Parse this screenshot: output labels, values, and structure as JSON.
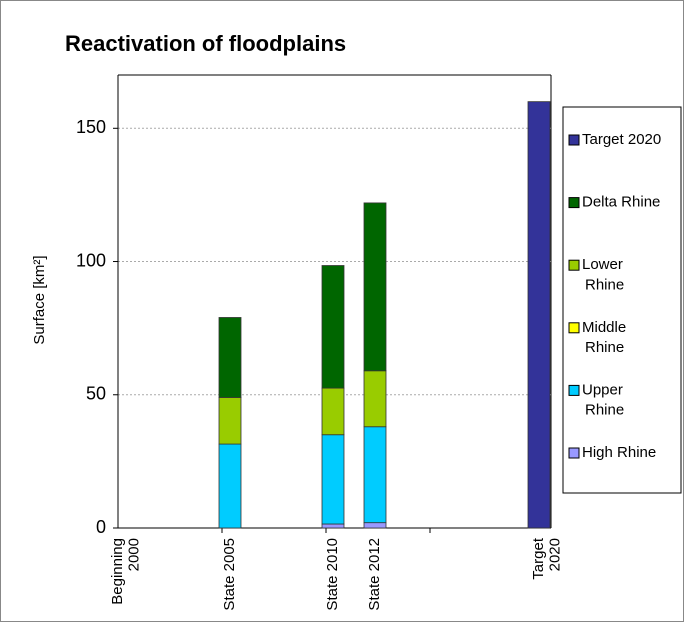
{
  "chart_data": {
    "type": "stacked_bar",
    "title": "Reactivation of floodplains",
    "y_label": "Surface [km²]",
    "categories": [
      "Beginning\n2000",
      "State 2005",
      "State 2010",
      "State 2012",
      "Target\n2020"
    ],
    "series": [
      {
        "name": "High Rhine",
        "color": "#9999ff",
        "values": [
          null,
          0,
          1.5,
          2,
          null
        ]
      },
      {
        "name": "Upper Rhine",
        "color": "#00ccff",
        "values": [
          null,
          31.5,
          33.5,
          36,
          null
        ]
      },
      {
        "name": "Middle Rhine",
        "color": "#ffff00",
        "values": [
          null,
          0,
          0,
          0,
          null
        ]
      },
      {
        "name": "Lower Rhine",
        "color": "#99cc00",
        "values": [
          null,
          17.5,
          17.5,
          21,
          null
        ]
      },
      {
        "name": "Delta Rhine",
        "color": "#006600",
        "values": [
          null,
          30,
          46,
          63,
          null
        ]
      },
      {
        "name": "Target 2020",
        "color": "#333399",
        "values": [
          null,
          null,
          null,
          null,
          160
        ]
      }
    ],
    "ylim": [
      0,
      170
    ],
    "yticks": [
      0,
      50,
      100,
      150
    ],
    "grid": true,
    "legend": "right"
  }
}
